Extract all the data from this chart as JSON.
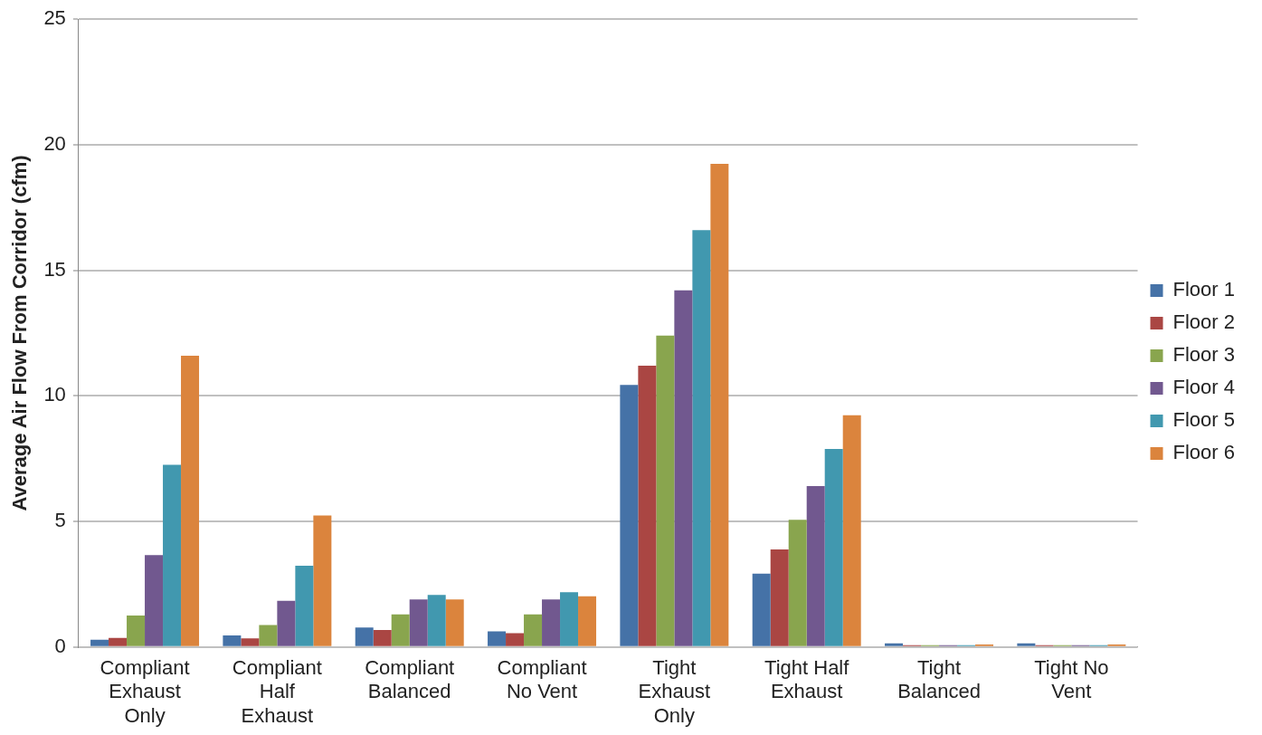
{
  "chart_data": {
    "type": "bar",
    "ylabel": "Average Air Flow From Corridor (cfm)",
    "categories": [
      "Compliant\nExhaust\nOnly",
      "Compliant\nHalf\nExhaust",
      "Compliant\nBalanced",
      "Compliant\nNo Vent",
      "Tight\nExhaust\nOnly",
      "Tight Half\nExhaust",
      "Tight\nBalanced",
      "Tight No\nVent"
    ],
    "series": [
      {
        "name": "Floor 1",
        "color": "#4572a7",
        "values": [
          0.29,
          0.46,
          0.78,
          0.62,
          10.44,
          2.92,
          0.15,
          0.15
        ]
      },
      {
        "name": "Floor 2",
        "color": "#aa4643",
        "values": [
          0.36,
          0.34,
          0.68,
          0.55,
          11.2,
          3.89,
          0.07,
          0.07
        ]
      },
      {
        "name": "Floor 3",
        "color": "#89a54e",
        "values": [
          1.25,
          0.88,
          1.3,
          1.3,
          12.4,
          5.07,
          0.07,
          0.07
        ]
      },
      {
        "name": "Floor 4",
        "color": "#71588f",
        "values": [
          3.66,
          1.84,
          1.89,
          1.89,
          14.2,
          6.41,
          0.07,
          0.07
        ]
      },
      {
        "name": "Floor 5",
        "color": "#4198af",
        "values": [
          7.26,
          3.24,
          2.07,
          2.18,
          16.6,
          7.89,
          0.07,
          0.07
        ]
      },
      {
        "name": "Floor 6",
        "color": "#db843d",
        "values": [
          11.6,
          5.24,
          1.89,
          2.02,
          19.24,
          9.23,
          0.1,
          0.1
        ]
      }
    ],
    "ylim": [
      0,
      25
    ],
    "yticks": [
      0,
      5,
      10,
      15,
      20,
      25
    ],
    "grid": "y",
    "legend": "right"
  }
}
